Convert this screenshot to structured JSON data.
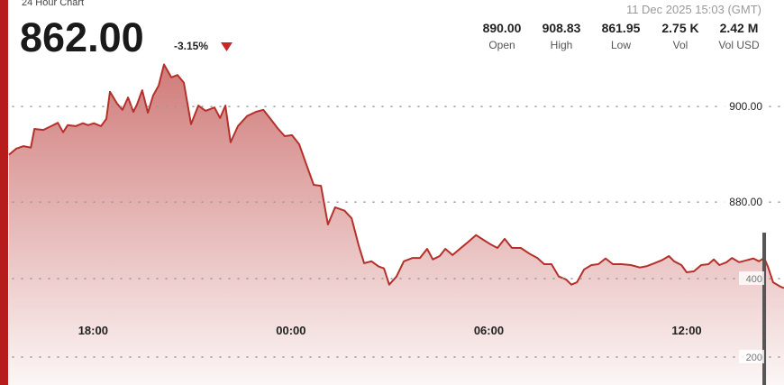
{
  "chart_data": {
    "type": "area",
    "title": "24 Hour Chart",
    "price": "862.00",
    "change": "-3.15%",
    "timestamp": "11 Dec 2025 15:03 (GMT)",
    "stats": [
      {
        "value": "890.00",
        "label": "Open"
      },
      {
        "value": "908.83",
        "label": "High"
      },
      {
        "value": "861.95",
        "label": "Low"
      },
      {
        "value": "2.75 K",
        "label": "Vol"
      },
      {
        "value": "2.42 M",
        "label": "Vol USD"
      }
    ],
    "x": [
      15.45,
      15.67,
      15.89,
      16.11,
      16.22,
      16.49,
      16.73,
      16.93,
      17.09,
      17.23,
      17.47,
      17.69,
      17.85,
      18.02,
      18.24,
      18.4,
      18.51,
      18.73,
      18.89,
      19.06,
      19.22,
      19.33,
      19.49,
      19.66,
      19.82,
      19.99,
      20.15,
      20.37,
      20.56,
      20.75,
      20.97,
      21.19,
      21.41,
      21.68,
      21.85,
      22.01,
      22.17,
      22.39,
      22.67,
      22.94,
      23.16,
      23.38,
      23.59,
      23.81,
      24.03,
      24.25,
      24.47,
      24.69,
      24.91,
      25.12,
      25.34,
      25.62,
      25.84,
      26.05,
      26.22,
      26.44,
      26.66,
      26.82,
      26.98,
      27.2,
      27.42,
      27.69,
      27.91,
      28.13,
      28.3,
      28.51,
      28.68,
      28.9,
      29.12,
      29.33,
      29.61,
      29.83,
      30.04,
      30.26,
      30.48,
      30.7,
      30.97,
      31.25,
      31.47,
      31.68,
      31.9,
      32.12,
      32.34,
      32.5,
      32.67,
      32.89,
      33.11,
      33.32,
      33.54,
      33.76,
      34.03,
      34.31,
      34.58,
      34.8,
      35.02,
      35.24,
      35.46,
      35.62,
      35.84,
      36.0,
      36.22,
      36.44,
      36.66,
      36.82,
      36.99,
      37.21,
      37.37,
      37.59,
      37.81,
      38.02,
      38.19,
      38.35,
      38.46,
      38.62,
      38.84,
      38.95
    ],
    "series": [
      {
        "color": "#b5302a",
        "values": [
          889.9,
          891.2,
          891.7,
          891.4,
          895.3,
          895.1,
          895.9,
          896.6,
          894.6,
          896.1,
          895.9,
          896.5,
          896.1,
          896.5,
          895.9,
          897.4,
          903.1,
          900.6,
          899.3,
          901.9,
          898.9,
          900.4,
          903.4,
          898.7,
          902.3,
          904.4,
          908.8,
          906.1,
          906.6,
          905.0,
          896.3,
          900.2,
          899.1,
          899.8,
          897.6,
          900.2,
          892.5,
          895.9,
          898.0,
          898.9,
          899.3,
          897.4,
          895.5,
          893.8,
          894.0,
          892.1,
          887.8,
          883.6,
          883.4,
          875.3,
          878.9,
          878.2,
          876.6,
          871.0,
          867.2,
          867.6,
          866.5,
          866.1,
          862.7,
          864.4,
          867.6,
          868.3,
          868.3,
          870.2,
          868.0,
          868.7,
          870.2,
          868.9,
          870.2,
          871.4,
          873.1,
          872.1,
          871.2,
          870.4,
          872.3,
          870.4,
          870.4,
          869.1,
          868.3,
          867.0,
          867.0,
          864.4,
          863.8,
          862.7,
          863.2,
          865.9,
          866.8,
          867.0,
          868.2,
          867.0,
          867.0,
          866.8,
          866.3,
          866.6,
          867.2,
          867.8,
          868.7,
          867.6,
          866.8,
          865.3,
          865.5,
          866.8,
          867.0,
          868.0,
          866.8,
          867.4,
          868.3,
          867.4,
          867.8,
          868.2,
          867.6,
          868.3,
          866.5,
          863.2,
          862.3,
          862.0
        ]
      },
      {
        "type": "bar",
        "axis": "y2",
        "color": "#555555",
        "x": [
          38.35
        ],
        "values": [
          517
        ]
      }
    ],
    "xlim": [
      15.45,
      38.95
    ],
    "xticks": [
      {
        "value": 18,
        "label": "18:00"
      },
      {
        "value": 24,
        "label": "00:00"
      },
      {
        "value": 30,
        "label": "06:00"
      },
      {
        "value": 36,
        "label": "12:00"
      }
    ],
    "ylim": [
      841.7,
      922.3
    ],
    "yticks": [
      {
        "value": 880,
        "label": "880.00"
      },
      {
        "value": 900,
        "label": "900.00"
      }
    ],
    "y2lim": [
      128.7,
      1110
    ],
    "y2ticks": [
      200,
      400
    ],
    "grid": true
  }
}
